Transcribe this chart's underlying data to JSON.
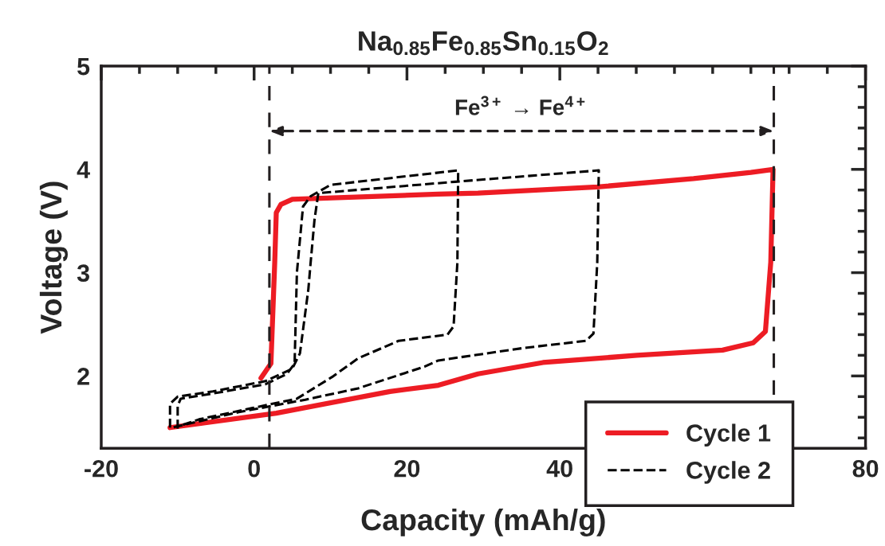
{
  "chart_data": {
    "type": "line",
    "title": "Na$_{0.85}$Fe$_{0.85}$Sn$_{0.15}$O$_{2}$",
    "xlabel": "Capacity (mAh/g)",
    "ylabel": "Voltage (V)",
    "xlim": [
      -20,
      80
    ],
    "xticks": [
      -20,
      0,
      20,
      40,
      80
    ],
    "ylim": [
      1.3,
      5
    ],
    "yticks": [
      2,
      3,
      4,
      5
    ],
    "grid": false,
    "legend": "bottom right",
    "series": [
      {
        "name": "Cycle 1",
        "color": "#ed1c24",
        "line_style": "solid",
        "x": [
          0.9,
          2.2,
          2.7,
          2.9,
          3.5,
          5.0,
          24.1,
          29.3,
          44.9,
          57.5,
          65.0,
          67.9,
          67.6,
          66.9,
          65.3,
          61.3,
          50.1,
          37.8,
          29.3,
          24.1,
          17.8,
          2.9,
          -11.0
        ],
        "values": [
          1.98,
          2.12,
          3.1,
          3.58,
          3.66,
          3.71,
          3.76,
          3.77,
          3.83,
          3.91,
          3.97,
          4.0,
          3.1,
          2.43,
          2.32,
          2.25,
          2.2,
          2.13,
          2.02,
          1.91,
          1.85,
          1.64,
          1.5
        ]
      },
      {
        "name": "Cycle 2",
        "color": "#000000",
        "line_style": "dashed",
        "x": [
          -10.0,
          -10.0,
          -9.6,
          -5.4,
          1.5,
          4.3,
          5.3,
          5.6,
          6.4,
          7.4,
          10.0,
          26.7,
          26.6,
          26.1,
          25.3,
          18.9,
          13.6,
          10.2,
          5.6,
          -0.2,
          -7.2,
          -10.0
        ],
        "values": [
          1.49,
          1.71,
          1.78,
          1.83,
          1.92,
          2.02,
          2.12,
          3.0,
          3.64,
          3.74,
          3.85,
          3.99,
          3.1,
          2.48,
          2.4,
          2.34,
          2.17,
          1.99,
          1.78,
          1.69,
          1.58,
          1.51
        ]
      },
      {
        "color": "#000000",
        "line_style": "dashed",
        "x": [
          -11.0,
          -11.0,
          -10.0,
          -5.4,
          1.5,
          5.0,
          6.0,
          7.1,
          7.4,
          7.9,
          8.4,
          26.3,
          45.1,
          44.9,
          44.4,
          43.4,
          35.2,
          24.1,
          22.3,
          13.6,
          6.7,
          -2.0,
          -9.0,
          -10.8
        ],
        "values": [
          1.5,
          1.73,
          1.8,
          1.85,
          1.95,
          2.07,
          2.22,
          2.84,
          3.1,
          3.51,
          3.77,
          3.88,
          3.99,
          3.1,
          2.41,
          2.34,
          2.27,
          2.15,
          2.09,
          1.88,
          1.77,
          1.65,
          1.53,
          1.5
        ]
      }
    ],
    "ref_lines": [
      {
        "axis": "x",
        "value": 2,
        "line_style": "dashed",
        "color": "#231f20"
      },
      {
        "axis": "x",
        "value": 68,
        "line_style": "dashed",
        "color": "#231f20"
      }
    ],
    "annotations": [
      "Fe$^{3+}$ → Fe$^{4+}$"
    ]
  }
}
